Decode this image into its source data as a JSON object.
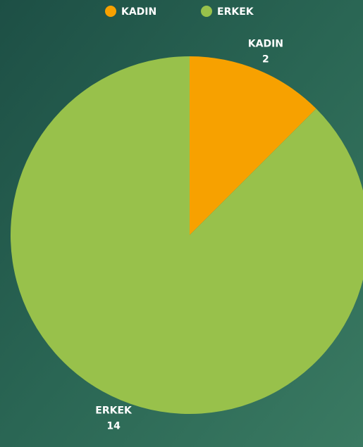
{
  "chart_data": {
    "type": "pie",
    "categories": [
      "KADIN",
      "ERKEK"
    ],
    "values": [
      2,
      14
    ],
    "colors": [
      "#f7a100",
      "#98c14b"
    ],
    "legend": "top"
  }
}
